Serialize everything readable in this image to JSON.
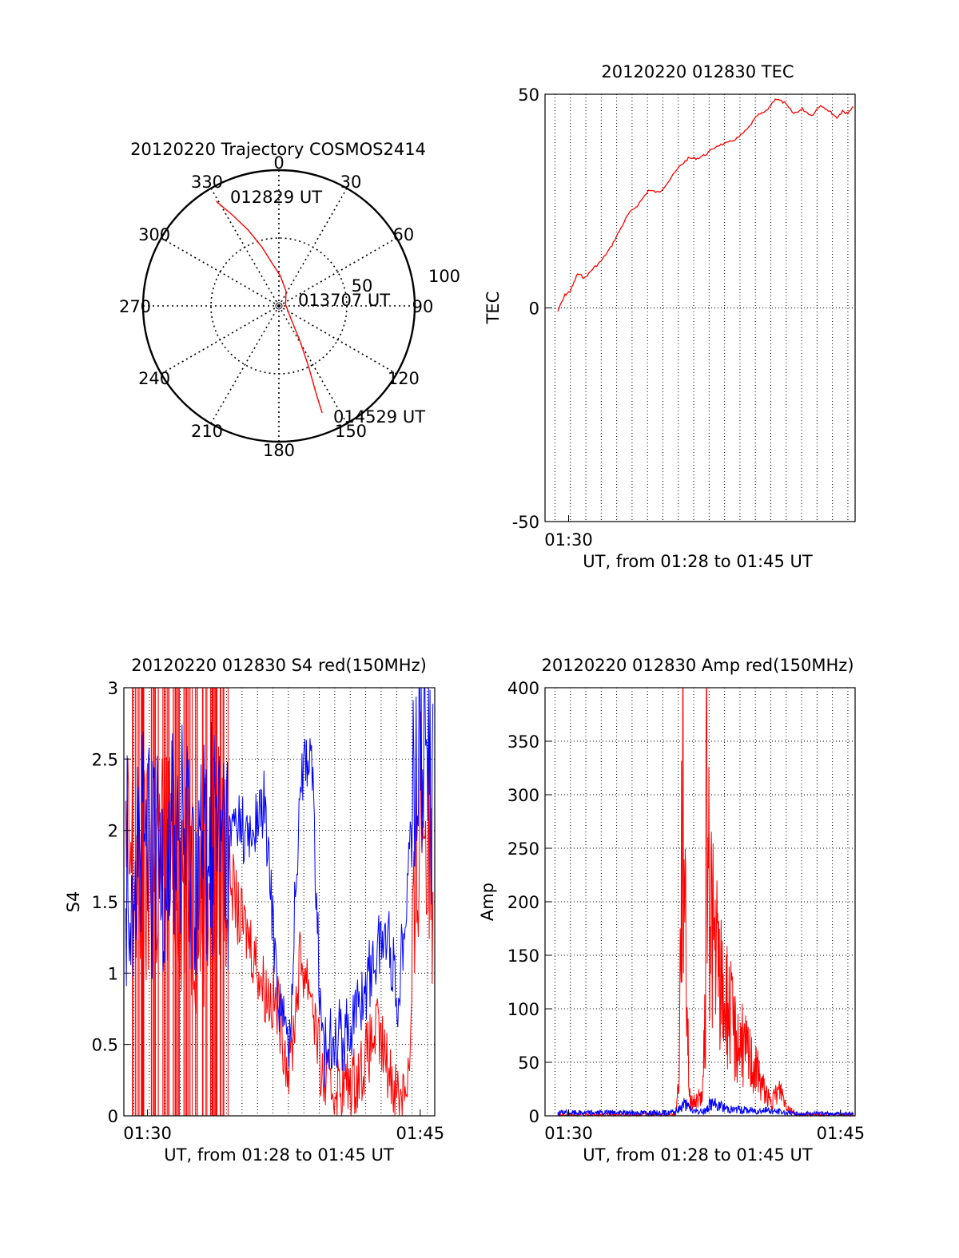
{
  "colors": {
    "red": "#ff0000",
    "blue": "#0000ff",
    "axis": "#000000",
    "grid": "#000000",
    "background": "#ffffff"
  },
  "polar": {
    "title": "20120220 Trajectory COSMOS2414",
    "azimuth_labels": [
      "0",
      "30",
      "60",
      "90",
      "120",
      "150",
      "180",
      "210",
      "240",
      "270",
      "300",
      "330"
    ],
    "azimuths": [
      0,
      30,
      60,
      90,
      120,
      150,
      180,
      210,
      240,
      270,
      300,
      330
    ],
    "ring_labels": [
      "50",
      "100"
    ],
    "ring_values": [
      50,
      100
    ],
    "max_value": 100,
    "track": [
      [
        329,
        90
      ],
      [
        333,
        75
      ],
      [
        338,
        60
      ],
      [
        344,
        45
      ],
      [
        350,
        33
      ],
      [
        3,
        22
      ],
      [
        26,
        12
      ],
      [
        80,
        5
      ],
      [
        135,
        12
      ],
      [
        149,
        30
      ],
      [
        154,
        50
      ],
      [
        157,
        70
      ],
      [
        158,
        85
      ]
    ],
    "annotations": [
      {
        "text": "012829 UT",
        "azimuth": 329,
        "value": 90
      },
      {
        "text": "013707 UT",
        "azimuth": 80,
        "value": 5
      },
      {
        "text": "014529 UT",
        "azimuth": 158,
        "value": 85
      }
    ]
  },
  "chart_data": [
    {
      "type": "line",
      "title": "20120220 012830 TEC",
      "xlabel": "UT, from 01:28 to 01:45 UT",
      "ylabel": "TEC",
      "xlim": [
        88.7,
        105.8
      ],
      "ylim": [
        -50,
        50
      ],
      "xticks": [
        {
          "value": 90,
          "label": "01:30"
        }
      ],
      "yticks": [
        {
          "value": 50,
          "label": "50"
        },
        {
          "value": 0,
          "label": "0"
        },
        {
          "value": -50,
          "label": "-50"
        }
      ],
      "grid": true,
      "series": [
        {
          "color": "red",
          "x": [
            89.4,
            89.8,
            90.1,
            90.5,
            90.9,
            91.3,
            91.8,
            92.3,
            92.8,
            93.3,
            93.8,
            94.4,
            95.0,
            95.4,
            96.1,
            96.6,
            97.1,
            97.6,
            98.2,
            98.8,
            99.4,
            99.9,
            100.4,
            100.9,
            101.4,
            101.9,
            102.4,
            102.9,
            103.4,
            103.9,
            104.4,
            104.8,
            105.1,
            105.4,
            105.7
          ],
          "y": [
            -0.8,
            3,
            4,
            8,
            7,
            9,
            11,
            14,
            18,
            22,
            24,
            27.5,
            27,
            29,
            33,
            35,
            35,
            36,
            38,
            38.6,
            40,
            42,
            45,
            46,
            49,
            48,
            45.5,
            46.5,
            45,
            47.5,
            46,
            44.5,
            46,
            45.5,
            47
          ]
        }
      ]
    },
    {
      "type": "line",
      "title": "20120220 012830 S4 red(150MHz)",
      "xlabel": "UT, from 01:28 to 01:45 UT",
      "ylabel": "S4",
      "xlim": [
        88.7,
        105.8
      ],
      "ylim": [
        0,
        3
      ],
      "xticks": [
        {
          "value": 90,
          "label": "01:30"
        },
        {
          "value": 105,
          "label": "01:45"
        }
      ],
      "yticks": [
        {
          "value": 0,
          "label": "0"
        },
        {
          "value": 0.5,
          "label": "0.5"
        },
        {
          "value": 1,
          "label": "1"
        },
        {
          "value": 1.5,
          "label": "1.5"
        },
        {
          "value": 2,
          "label": "2"
        },
        {
          "value": 2.5,
          "label": "2.5"
        },
        {
          "value": 3,
          "label": "3"
        }
      ],
      "grid": true,
      "series": [
        {
          "color": "red",
          "x": [
            88.8,
            89.6,
            90.4,
            91.2,
            92.0,
            92.8,
            93.6,
            94.4,
            95.0,
            95.6,
            96.4,
            97.2,
            97.8,
            98.4,
            99.0,
            99.6,
            100.2,
            100.8,
            101.4,
            102.0,
            102.6,
            103.2,
            103.8,
            104.4,
            105.0,
            105.7
          ],
          "y": [
            1.8,
            1.6,
            1.7,
            1.9,
            1.7,
            1.6,
            1.75,
            1.8,
            1.4,
            1.25,
            0.9,
            0.75,
            0.3,
            1.1,
            0.9,
            0.25,
            0.2,
            0.2,
            0.25,
            0.4,
            0.6,
            0.35,
            0.15,
            0.3,
            2.3,
            1.7
          ]
        },
        {
          "color": "blue",
          "x": [
            88.8,
            89.6,
            90.4,
            91.2,
            92.0,
            92.8,
            93.6,
            94.4,
            95.0,
            95.6,
            96.4,
            97.2,
            97.8,
            98.4,
            99.0,
            99.6,
            100.2,
            100.8,
            101.4,
            102.0,
            102.6,
            103.2,
            103.8,
            104.4,
            105.0,
            105.7
          ],
          "y": [
            1.8,
            1.9,
            1.7,
            2.0,
            1.9,
            1.8,
            2.0,
            1.9,
            2.1,
            1.9,
            2.2,
            0.85,
            0.45,
            2.4,
            2.6,
            0.4,
            0.6,
            0.55,
            0.7,
            0.9,
            1.15,
            1.3,
            0.8,
            1.9,
            2.8,
            2.2
          ]
        }
      ]
    },
    {
      "type": "line",
      "title": "20120220 012830 Amp red(150MHz)",
      "xlabel": "UT, from 01:28 to 01:45 UT",
      "ylabel": "Amp",
      "xlim": [
        88.7,
        105.8
      ],
      "ylim": [
        0,
        400
      ],
      "xticks": [
        {
          "value": 90,
          "label": "01:30"
        },
        {
          "value": 105,
          "label": "01:45"
        }
      ],
      "yticks": [
        {
          "value": 0,
          "label": "0"
        },
        {
          "value": 50,
          "label": "50"
        },
        {
          "value": 100,
          "label": "100"
        },
        {
          "value": 150,
          "label": "150"
        },
        {
          "value": 200,
          "label": "200"
        },
        {
          "value": 250,
          "label": "250"
        },
        {
          "value": 300,
          "label": "300"
        },
        {
          "value": 350,
          "label": "350"
        },
        {
          "value": 400,
          "label": "400"
        }
      ],
      "grid": true,
      "series": [
        {
          "color": "red",
          "x": [
            89.4,
            95.9,
            96.1,
            96.2,
            96.35,
            96.5,
            96.65,
            96.8,
            97.1,
            97.4,
            97.55,
            97.6,
            97.7,
            97.8,
            98.0,
            98.4,
            98.8,
            99.2,
            99.6,
            100.0,
            100.4,
            100.8,
            101.2,
            101.4,
            101.7,
            102.0,
            102.3,
            102.6,
            105.7
          ],
          "y": [
            1,
            1,
            40,
            230,
            310,
            150,
            20,
            12,
            15,
            20,
            100,
            350,
            200,
            220,
            160,
            120,
            100,
            75,
            65,
            55,
            40,
            25,
            10,
            20,
            25,
            10,
            5,
            1,
            1
          ]
        },
        {
          "color": "blue",
          "x": [
            89.4,
            95.8,
            96.1,
            96.35,
            96.6,
            96.9,
            97.3,
            97.6,
            97.8,
            98.3,
            99.0,
            100.0,
            101.0,
            102.0,
            102.5,
            105.7
          ],
          "y": [
            3,
            3,
            6,
            12,
            8,
            4,
            4,
            5,
            12,
            9,
            6,
            5,
            5,
            3,
            2,
            2
          ]
        }
      ]
    }
  ]
}
